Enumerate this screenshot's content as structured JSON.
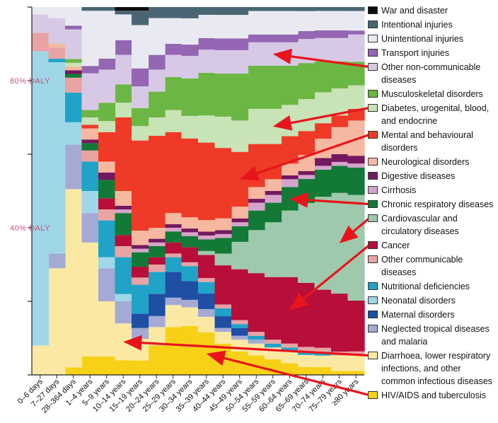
{
  "chart_data": {
    "type": "area",
    "stacked": true,
    "normalized": true,
    "title": "",
    "xlabel": "",
    "ylabel": "",
    "ylim": [
      0,
      100
    ],
    "y_annotations": [
      {
        "text": "80% DALY",
        "value": 80
      },
      {
        "text": "40% DALY",
        "value": 40
      }
    ],
    "categories": [
      "0–6 days",
      "7–27 days",
      "28–364 days",
      "1–4 years",
      "5–9 years",
      "10–14 years",
      "15–19 years",
      "20–24 years",
      "25–29 years",
      "30–34 years",
      "35–39 years",
      "40–44 years",
      "45–49 years",
      "50–54 years",
      "55–59 years",
      "60–64 years",
      "65–69 years",
      "70–74 years",
      "75–79 years",
      "≥80 years"
    ],
    "series": [
      {
        "name": "HIV/AIDS and tuberculosis",
        "color": "#f7d117",
        "values": [
          0,
          0,
          2,
          5,
          5,
          4,
          4,
          8,
          13,
          13,
          11,
          8,
          6,
          5,
          4,
          3,
          2,
          2,
          1,
          1
        ]
      },
      {
        "name": "Diarrhoea, lower respiratory infections, and other common infectious diseases",
        "color": "#fbe9a3",
        "values": [
          8,
          29,
          48,
          31,
          15,
          10,
          6,
          5,
          6,
          5,
          4,
          3,
          3,
          3,
          3,
          3,
          3,
          3,
          4,
          4
        ]
      },
      {
        "name": "Neglected tropical diseases and malaria",
        "color": "#a4aad4",
        "values": [
          0,
          4,
          12,
          8,
          9,
          6,
          3,
          3,
          2,
          2,
          2,
          1,
          1,
          1,
          0,
          0,
          0,
          0,
          0,
          0
        ]
      },
      {
        "name": "Maternal disorders",
        "color": "#1e4fa4",
        "values": [
          0,
          0,
          0,
          0,
          0,
          0,
          4,
          6,
          7,
          5,
          4,
          3,
          2,
          0,
          0,
          0,
          0,
          0,
          0,
          0
        ]
      },
      {
        "name": "Neonatal disorders",
        "color": "#9fd6e8",
        "values": [
          80,
          52,
          6,
          6,
          3,
          2,
          0,
          0,
          0,
          0,
          0,
          0,
          0,
          0,
          0,
          0,
          0,
          0,
          0,
          0
        ]
      },
      {
        "name": "Nutritional deficiencies",
        "color": "#21a3c7",
        "values": [
          0,
          1,
          8,
          8,
          10,
          10,
          8,
          6,
          4,
          4,
          3,
          2,
          1,
          1,
          1,
          1,
          1,
          1,
          0,
          0
        ]
      },
      {
        "name": "Other communicable diseases",
        "color": "#e9a3a3",
        "values": [
          5,
          3,
          4,
          3,
          3,
          3,
          2,
          2,
          1,
          1,
          1,
          1,
          1,
          1,
          1,
          1,
          1,
          1,
          1,
          1
        ]
      },
      {
        "name": "Cancer",
        "color": "#b70e3a",
        "values": [
          0,
          0,
          0,
          0,
          3,
          3,
          3,
          2,
          3,
          4,
          6,
          10,
          13,
          15,
          16,
          17,
          16,
          15,
          15,
          13
        ]
      },
      {
        "name": "Cardiovascular and circulatory diseases",
        "color": "#9fc9ac",
        "values": [
          0,
          0,
          0,
          0,
          0,
          0,
          0,
          0,
          0,
          0,
          1,
          3,
          7,
          11,
          14,
          17,
          20,
          24,
          26,
          27
        ]
      },
      {
        "name": "Chronic respiratory diseases",
        "color": "#127a36",
        "values": [
          0,
          0,
          1,
          2,
          5,
          6,
          4,
          3,
          3,
          3,
          3,
          4,
          4,
          5,
          5,
          6,
          6,
          7,
          7,
          7
        ]
      },
      {
        "name": "Cirrhosis",
        "color": "#d5a4cb",
        "values": [
          0,
          0,
          0,
          0,
          0,
          1,
          1,
          1,
          1,
          1,
          1,
          1,
          1,
          2,
          2,
          2,
          1,
          1,
          1,
          1
        ]
      },
      {
        "name": "Digestive diseases",
        "color": "#74195e",
        "values": [
          0,
          0,
          1,
          1,
          2,
          1,
          1,
          1,
          1,
          1,
          1,
          1,
          1,
          1,
          1,
          1,
          1,
          2,
          2,
          2
        ]
      },
      {
        "name": "Neurological disorders",
        "color": "#f6b8a0",
        "values": [
          0,
          1,
          1,
          3,
          3,
          4,
          4,
          3,
          3,
          3,
          3,
          3,
          3,
          3,
          3,
          3,
          4,
          5,
          7,
          9
        ]
      },
      {
        "name": "Mental and behavioural disorders",
        "color": "#ee3a26",
        "values": [
          0,
          0,
          0,
          1,
          8,
          20,
          25,
          25,
          22,
          21,
          20,
          18,
          14,
          11,
          9,
          7,
          6,
          4,
          3,
          3
        ]
      },
      {
        "name": "Diabetes, urogenital, blood, and endocrine",
        "color": "#c8e3b6",
        "values": [
          0,
          0,
          1,
          2,
          3,
          4,
          4,
          5,
          6,
          6,
          7,
          8,
          8,
          9,
          9,
          8,
          8,
          8,
          7,
          6
        ]
      },
      {
        "name": "Musculoskeletal disorders",
        "color": "#6cb644",
        "values": [
          0,
          0,
          1,
          2,
          5,
          5,
          5,
          7,
          9,
          10,
          11,
          11,
          12,
          11,
          11,
          10,
          9,
          8,
          7,
          6
        ]
      },
      {
        "name": "Other non-communicable diseases",
        "color": "#d7c9e5",
        "values": [
          5,
          7,
          8,
          10,
          9,
          8,
          6,
          6,
          6,
          6,
          6,
          6,
          6,
          6,
          6,
          6,
          6,
          6,
          6,
          7
        ]
      },
      {
        "name": "Transport injuries",
        "color": "#9466b3",
        "values": [
          0,
          0,
          1,
          2,
          3,
          4,
          5,
          4,
          3,
          3,
          3,
          3,
          3,
          2,
          2,
          2,
          2,
          2,
          2,
          1
        ]
      },
      {
        "name": "Unintentional injuries",
        "color": "#e9eaf1",
        "values": [
          2,
          3,
          5,
          15,
          13,
          7,
          12,
          10,
          7,
          7,
          6,
          6,
          6,
          6,
          6,
          6,
          5,
          5,
          5,
          5
        ]
      },
      {
        "name": "Intentional injuries",
        "color": "#4a6674",
        "values": [
          0,
          0,
          0,
          1,
          1,
          1,
          4,
          3,
          3,
          3,
          2,
          2,
          2,
          1,
          1,
          1,
          1,
          1,
          1,
          1
        ]
      },
      {
        "name": "War and disaster",
        "color": "#0d0d0d",
        "values": [
          0,
          0,
          0,
          0,
          0,
          1,
          1,
          0,
          0,
          0,
          0,
          0,
          0,
          0,
          0,
          0,
          0,
          0,
          0,
          0
        ]
      }
    ],
    "legend_order": [
      "War and disaster",
      "Intentional injuries",
      "Unintentional injuries",
      "Transport injuries",
      "Other non-communicable diseases",
      "Musculoskeletal disorders",
      "Diabetes, urogenital, blood, and endocrine",
      "Mental and behavioural disorders",
      "Neurological disorders",
      "Digestive diseases",
      "Cirrhosis",
      "Chronic respiratory diseases",
      "Cardiovascular and circulatory diseases",
      "Cancer",
      "Other communicable diseases",
      "Nutritional deficiencies",
      "Neonatal disorders",
      "Maternal disorders",
      "Neglected tropical diseases and malaria",
      "Diarrhoea, lower respiratory infections, and other common infectious diseases",
      "HIV/AIDS and tuberculosis"
    ],
    "legend_placement": "right",
    "grid": false,
    "arrow_color": "#e8141c",
    "arrow_targets": [
      {
        "series": "Other non-communicable diseases",
        "category": "55–59 years"
      },
      {
        "series": "Diabetes, urogenital, blood, and endocrine",
        "category": "55–59 years"
      },
      {
        "series": "Mental and behavioural disorders",
        "category": "45–49 years"
      },
      {
        "series": "Chronic respiratory diseases",
        "category": "60–64 years"
      },
      {
        "series": "Cardiovascular and circulatory diseases",
        "category": "75–79 years"
      },
      {
        "series": "Cancer",
        "category": "60–64 years"
      },
      {
        "series": "Diarrhoea, lower respiratory infections, and other common infectious diseases",
        "category": "10–14 years"
      },
      {
        "series": "HIV/AIDS and tuberculosis",
        "category": "35–39 years"
      }
    ]
  }
}
